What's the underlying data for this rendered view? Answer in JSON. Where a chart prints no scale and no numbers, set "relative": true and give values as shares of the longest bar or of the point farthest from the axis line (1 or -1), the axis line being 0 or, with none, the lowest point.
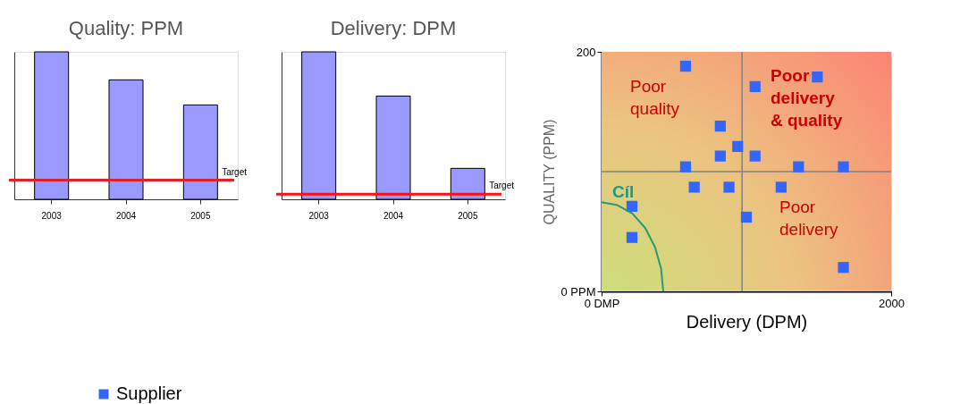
{
  "chart_data": [
    {
      "type": "bar",
      "title": "Quality: PPM",
      "categories": [
        "2003",
        "2004",
        "2005"
      ],
      "values": [
        1,
        0.81,
        0.64
      ],
      "color": "#9999ff",
      "relative": true,
      "ref_lines": [
        {
          "axis": "y",
          "value": 0.13,
          "label": "Target",
          "color": "#e0202a"
        }
      ]
    },
    {
      "type": "bar",
      "title": "Delivery: DPM",
      "categories": [
        "2003",
        "2004",
        "2005"
      ],
      "values": [
        1,
        0.7,
        0.21
      ],
      "color": "#9999ff",
      "relative": true,
      "ref_lines": [
        {
          "axis": "y",
          "value": 0.035,
          "label": "Target",
          "color": "#ff1010"
        }
      ]
    },
    {
      "type": "scatter",
      "xlabel": "Delivery (DPM)",
      "ylabel": "QUALITY (PPM)",
      "xlim": [
        0,
        2000
      ],
      "ylim": [
        0,
        200
      ],
      "xticks": [
        {
          "value": 0,
          "label": "0 DMP"
        },
        2000
      ],
      "yticks": [
        {
          "value": 0,
          "label": "0 PPM"
        },
        200
      ],
      "legend": "bottom",
      "series": [
        {
          "name": "Supplier",
          "color": "#3366ff",
          "marker": "square",
          "x": [
            580,
            1060,
            1490,
            820,
            940,
            820,
            1060,
            580,
            1360,
            1670,
            640,
            880,
            1240,
            210,
            1000,
            210,
            1670
          ],
          "values": [
            188,
            171,
            179,
            138,
            121,
            113,
            113,
            104,
            104,
            104,
            87,
            87,
            87,
            71,
            62,
            45,
            20
          ]
        },
        {
          "type": "line",
          "color": "#2a9a70",
          "x": [
            426,
            411,
            369,
            301,
            213,
            110,
            0
          ],
          "values": [
            0,
            19,
            37,
            53,
            65,
            72,
            74.5
          ]
        }
      ],
      "ref_lines": [
        {
          "axis": "x",
          "value": 970,
          "color": "#808080"
        },
        {
          "axis": "y",
          "value": 100,
          "color": "#808080"
        }
      ],
      "annotations": [
        "Poor\nquality",
        "Poor\ndelivery\n& quality",
        "Poor\ndelivery",
        "Cíl"
      ]
    }
  ]
}
